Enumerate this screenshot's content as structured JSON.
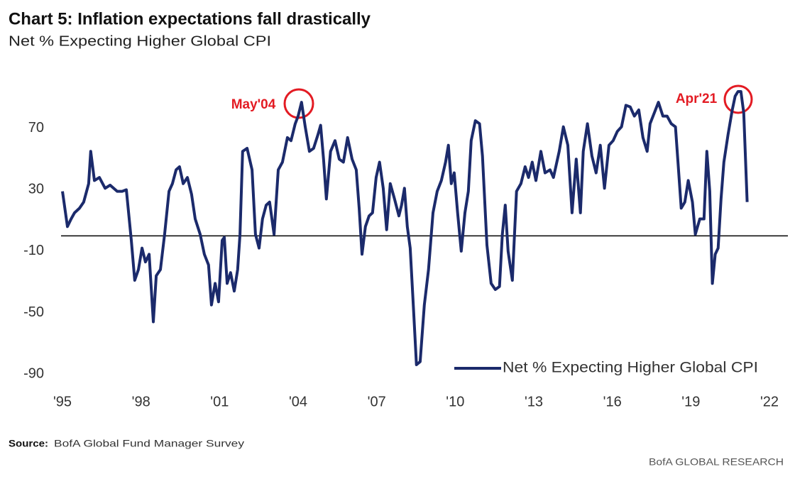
{
  "chart_data": {
    "type": "line",
    "title": "Chart 5: Inflation expectations fall drastically",
    "subtitle": "Net % Expecting Higher Global CPI",
    "source_label": "Source:",
    "source": "BofA Global Fund Manager Survey",
    "credit": "BofA GLOBAL RESEARCH",
    "annotations": [
      {
        "text": "May'04"
      },
      {
        "text": "Apr'21"
      }
    ],
    "reference_line": 0,
    "legend": "lower right",
    "xlim": [
      1995,
      2022
    ],
    "xticks": [
      {
        "value": 1995,
        "label": "'95"
      },
      {
        "value": 1998,
        "label": "'98"
      },
      {
        "value": 2001,
        "label": "'01"
      },
      {
        "value": 2004,
        "label": "'04"
      },
      {
        "value": 2007,
        "label": "'07"
      },
      {
        "value": 2010,
        "label": "'10"
      },
      {
        "value": 2013,
        "label": "'13"
      },
      {
        "value": 2016,
        "label": "'16"
      },
      {
        "value": 2019,
        "label": "'19"
      },
      {
        "value": 2022,
        "label": "'22"
      }
    ],
    "ylim": [
      -90,
      100
    ],
    "yticks": [
      -90,
      -50,
      -10,
      30,
      70
    ],
    "x": [
      1995.0,
      1995.19,
      1995.33,
      1995.46,
      1995.65,
      1995.81,
      1996.0,
      1996.08,
      1996.22,
      1996.41,
      1996.63,
      1996.82,
      1997.09,
      1997.28,
      1997.44,
      1997.63,
      1997.76,
      1997.9,
      1998.04,
      1998.17,
      1998.31,
      1998.47,
      1998.58,
      1998.74,
      1998.9,
      1999.07,
      1999.2,
      1999.34,
      1999.47,
      1999.61,
      1999.77,
      1999.93,
      2000.07,
      2000.26,
      2000.42,
      2000.58,
      2000.69,
      2000.83,
      2000.96,
      2001.1,
      2001.18,
      2001.29,
      2001.42,
      2001.56,
      2001.69,
      2001.78,
      2001.88,
      2002.05,
      2002.24,
      2002.37,
      2002.51,
      2002.64,
      2002.78,
      2002.91,
      2003.08,
      2003.24,
      2003.4,
      2003.59,
      2003.73,
      2003.89,
      2004.0,
      2004.13,
      2004.27,
      2004.43,
      2004.59,
      2004.76,
      2004.86,
      2004.97,
      2005.08,
      2005.24,
      2005.41,
      2005.57,
      2005.73,
      2005.89,
      2006.06,
      2006.22,
      2006.33,
      2006.44,
      2006.57,
      2006.71,
      2006.84,
      2006.98,
      2007.11,
      2007.25,
      2007.38,
      2007.52,
      2007.68,
      2007.85,
      2007.95,
      2008.06,
      2008.17,
      2008.28,
      2008.41,
      2008.52,
      2008.66,
      2008.82,
      2008.98,
      2009.15,
      2009.31,
      2009.47,
      2009.63,
      2009.74,
      2009.85,
      2009.96,
      2010.09,
      2010.23,
      2010.37,
      2010.5,
      2010.61,
      2010.77,
      2010.93,
      2011.04,
      2011.21,
      2011.37,
      2011.53,
      2011.69,
      2011.8,
      2011.91,
      2012.02,
      2012.18,
      2012.34,
      2012.51,
      2012.67,
      2012.8,
      2012.94,
      2013.08,
      2013.27,
      2013.43,
      2013.62,
      2013.75,
      2013.97,
      2014.13,
      2014.3,
      2014.46,
      2014.62,
      2014.78,
      2014.89,
      2015.05,
      2015.22,
      2015.38,
      2015.54,
      2015.7,
      2015.87,
      2016.03,
      2016.19,
      2016.35,
      2016.52,
      2016.68,
      2016.84,
      2017.01,
      2017.17,
      2017.33,
      2017.44,
      2017.6,
      2017.76,
      2017.93,
      2018.09,
      2018.25,
      2018.41,
      2018.52,
      2018.63,
      2018.77,
      2018.9,
      2019.06,
      2019.17,
      2019.34,
      2019.5,
      2019.61,
      2019.72,
      2019.82,
      2019.93,
      2020.04,
      2020.15,
      2020.26,
      2020.42,
      2020.58,
      2020.69,
      2020.8,
      2020.91,
      2021.02,
      2021.15
    ],
    "series": [
      {
        "name": "Net % Expecting Higher Global CPI",
        "color": "#1b2a6b",
        "values": [
          29,
          6,
          11,
          15,
          18,
          22,
          34,
          55,
          36,
          38,
          31,
          33,
          29,
          29,
          30,
          -3,
          -29,
          -22,
          -8,
          -17,
          -12,
          -56,
          -26,
          -22,
          1,
          29,
          34,
          43,
          45,
          34,
          38,
          27,
          11,
          1,
          -12,
          -19,
          -45,
          -31,
          -43,
          -3,
          -1,
          -31,
          -24,
          -36,
          -22,
          1,
          55,
          57,
          43,
          1,
          -8,
          11,
          20,
          22,
          1,
          43,
          48,
          64,
          62,
          73,
          78,
          87,
          71,
          55,
          57,
          66,
          72,
          50,
          24,
          55,
          62,
          50,
          48,
          64,
          50,
          43,
          18,
          -12,
          6,
          13,
          15,
          38,
          48,
          31,
          4,
          34,
          24,
          13,
          20,
          31,
          6,
          -8,
          -49,
          -84,
          -82,
          -45,
          -22,
          15,
          29,
          36,
          48,
          59,
          34,
          41,
          15,
          -10,
          15,
          29,
          62,
          75,
          73,
          52,
          -6,
          -31,
          -35,
          -33,
          1,
          20,
          -10,
          -29,
          29,
          34,
          45,
          38,
          48,
          36,
          55,
          41,
          43,
          38,
          55,
          71,
          59,
          15,
          50,
          15,
          55,
          73,
          52,
          41,
          59,
          31,
          59,
          62,
          68,
          71,
          85,
          84,
          78,
          82,
          64,
          55,
          73,
          80,
          87,
          78,
          78,
          73,
          71,
          45,
          18,
          22,
          36,
          22,
          1,
          11,
          11,
          55,
          29,
          -31,
          -12,
          -8,
          24,
          48,
          66,
          82,
          91,
          94,
          94,
          80,
          22
        ]
      }
    ]
  }
}
